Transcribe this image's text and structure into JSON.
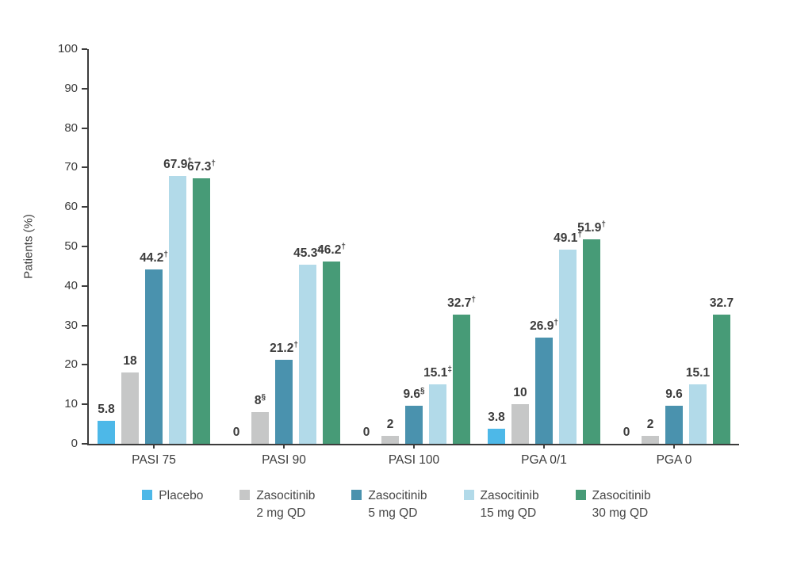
{
  "chart_data": {
    "type": "bar",
    "title": "",
    "ylabel": "Patients (%)",
    "ylim": [
      0,
      100
    ],
    "ytick_step": 10,
    "grid": false,
    "legend_position": "bottom",
    "categories": [
      "PASI 75",
      "PASI 90",
      "PASI 100",
      "PGA 0/1",
      "PGA 0"
    ],
    "series": [
      {
        "name": "Placebo",
        "color": "#4db8e8",
        "values": [
          5.8,
          0,
          0,
          3.8,
          0
        ],
        "labels": [
          "5.8",
          "0",
          "0",
          "3.8",
          "0"
        ]
      },
      {
        "name": "Zasocitinib 2 mg QD",
        "color": "#c6c7c7",
        "values": [
          18,
          8,
          2,
          10,
          2
        ],
        "labels": [
          "18",
          "8§",
          "2",
          "10",
          "2"
        ]
      },
      {
        "name": "Zasocitinib 5 mg QD",
        "color": "#4a92ae",
        "values": [
          44.2,
          21.2,
          9.6,
          26.9,
          9.6
        ],
        "labels": [
          "44.2†",
          "21.2†",
          "9.6§",
          "26.9†",
          "9.6"
        ]
      },
      {
        "name": "Zasocitinib 15 mg QD",
        "color": "#b2dae9",
        "values": [
          67.9,
          45.3,
          15.1,
          49.1,
          15.1
        ],
        "labels": [
          "67.9†",
          "45.3†",
          "15.1‡",
          "49.1†",
          "15.1"
        ]
      },
      {
        "name": "Zasocitinib 30 mg QD",
        "color": "#479b77",
        "values": [
          67.3,
          46.2,
          32.7,
          51.9,
          32.7
        ],
        "labels": [
          "67.3†",
          "46.2†",
          "32.7†",
          "51.9†",
          "32.7"
        ]
      }
    ],
    "legend": [
      {
        "line1": "Placebo",
        "line2": ""
      },
      {
        "line1": "Zasocitinib",
        "line2": "2 mg QD"
      },
      {
        "line1": "Zasocitinib",
        "line2": "5 mg QD"
      },
      {
        "line1": "Zasocitinib",
        "line2": "15 mg QD"
      },
      {
        "line1": "Zasocitinib",
        "line2": "30 mg QD"
      }
    ]
  }
}
